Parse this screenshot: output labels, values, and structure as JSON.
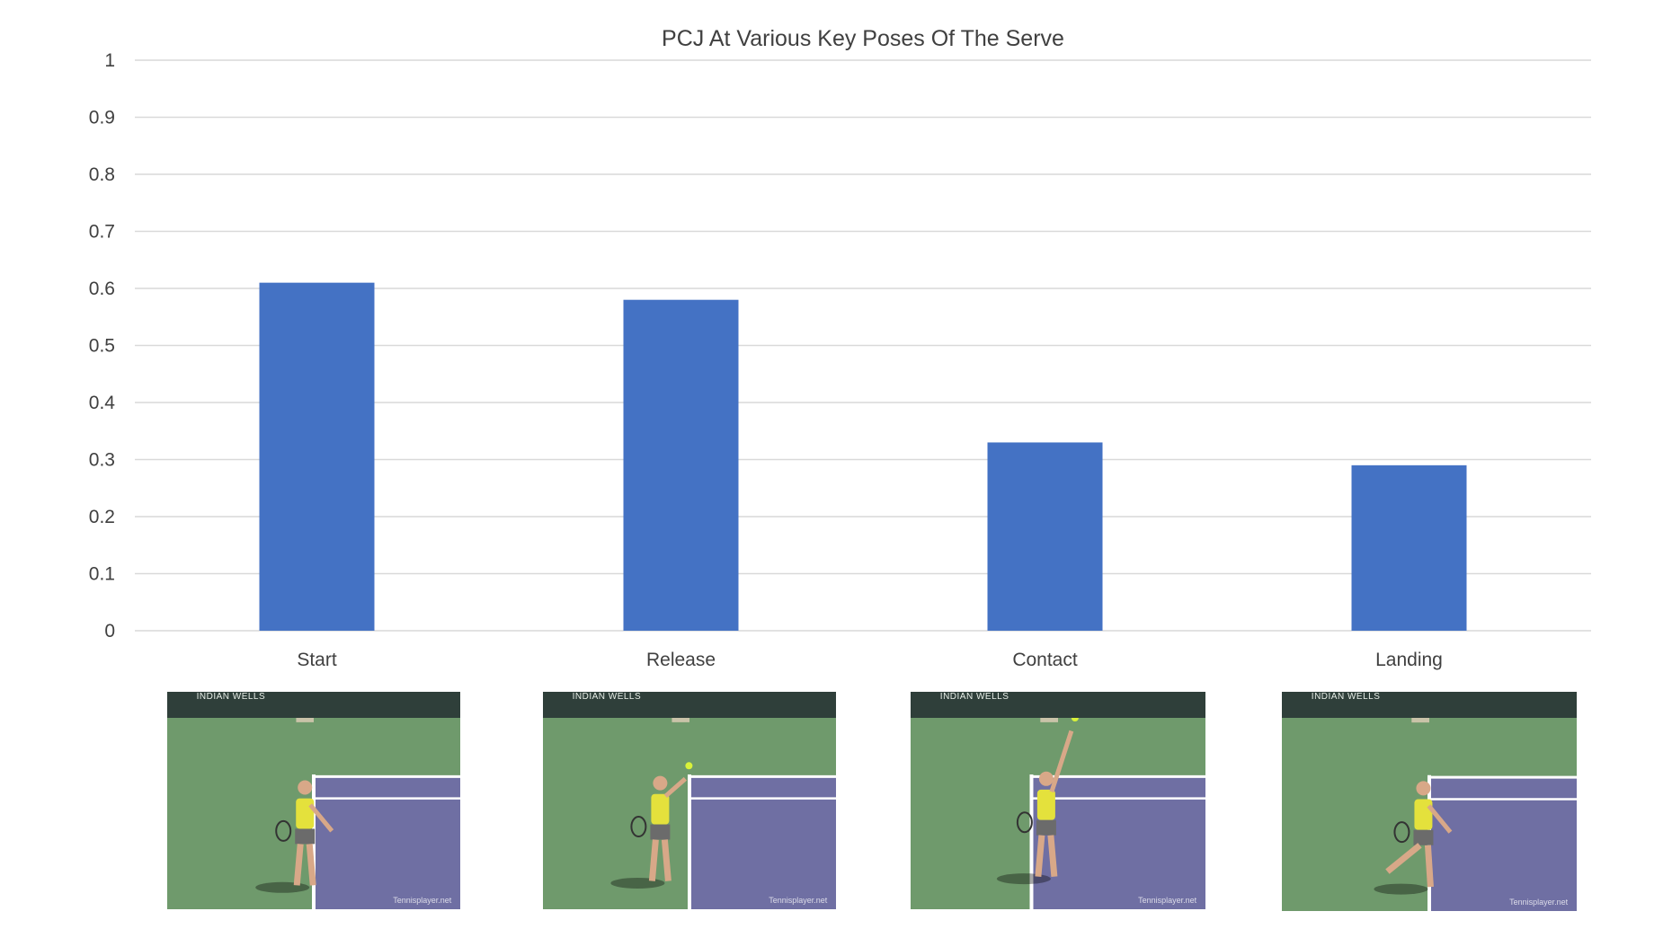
{
  "chart_data": {
    "type": "bar",
    "title": "PCJ At Various Key Poses Of The Serve",
    "categories": [
      "Start",
      "Release",
      "Contact",
      "Landing"
    ],
    "values": [
      0.61,
      0.58,
      0.33,
      0.29
    ],
    "ylim": [
      0,
      1
    ],
    "yticks": [
      "0",
      "0.1",
      "0.2",
      "0.3",
      "0.4",
      "0.5",
      "0.6",
      "0.7",
      "0.8",
      "0.9",
      "1"
    ],
    "xlabel": "",
    "ylabel": "",
    "grid": true,
    "legend": "none",
    "bar_color": "#4472C4",
    "grid_color": "#d9d9d9"
  },
  "thumbnails": [
    {
      "banner": "INDIAN WELLS",
      "watermark": "Tennisplayer.net",
      "pose": "start"
    },
    {
      "banner": "INDIAN WELLS",
      "watermark": "Tennisplayer.net",
      "pose": "release"
    },
    {
      "banner": "INDIAN WELLS",
      "watermark": "Tennisplayer.net",
      "pose": "contact"
    },
    {
      "banner": "INDIAN WELLS",
      "watermark": "Tennisplayer.net",
      "pose": "landing"
    }
  ]
}
